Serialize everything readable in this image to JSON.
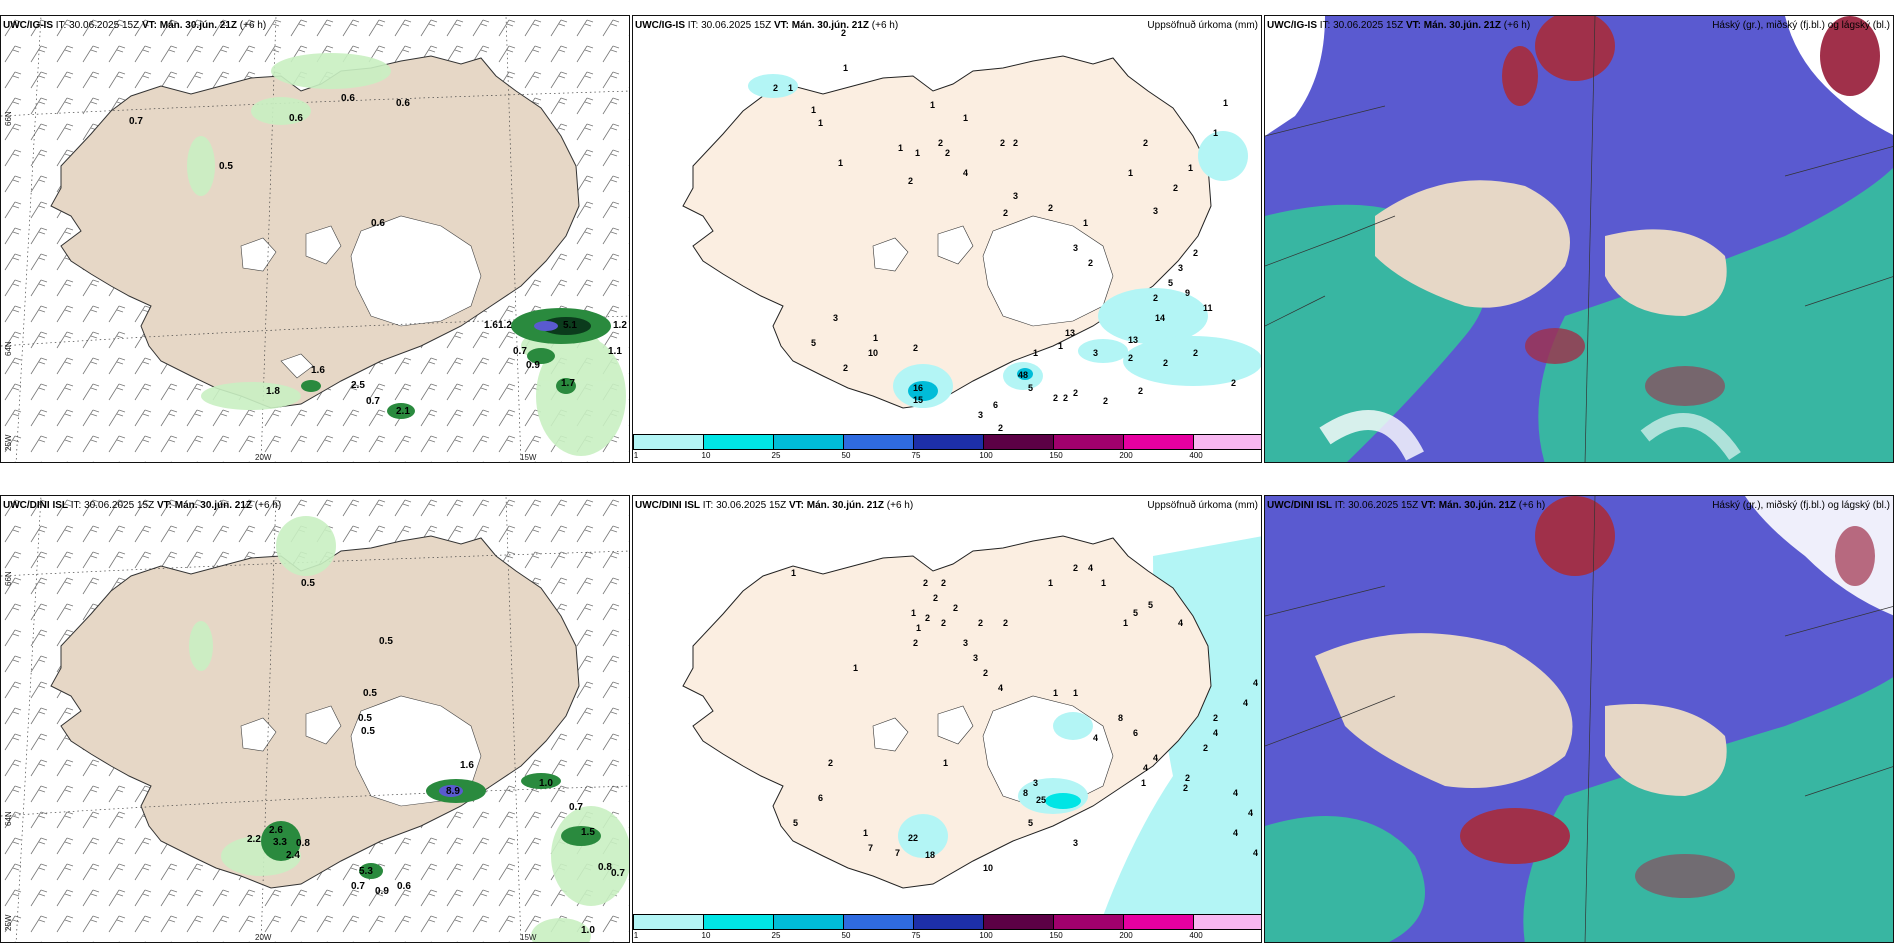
{
  "panels": {
    "top_left": {
      "model": "UWC/IG-IS",
      "it": "IT: 30.06.2025 15Z",
      "vt_label": "VT:",
      "vt": "Mán. 30.jún. 21Z",
      "lead": "(+6 h)",
      "right": ""
    },
    "top_mid": {
      "model": "UWC/IG-IS",
      "it": "IT: 30.06.2025 15Z",
      "vt_label": "VT:",
      "vt": "Mán. 30.jún. 21Z",
      "lead": "(+6 h)",
      "right": "Uppsöfnuð úrkoma (mm)"
    },
    "top_right": {
      "model": "UWC/IG-IS",
      "it": "IT: 30.06.2025 15Z",
      "vt_label": "VT:",
      "vt": "Mán. 30.jún. 21Z",
      "lead": "(+6 h)",
      "right": "Háský (gr.), miðský (fj.bl.) og lágský (bl.)"
    },
    "bot_left": {
      "model": "UWC/DINI ISL",
      "it": "IT: 30.06.2025 15Z",
      "vt_label": "VT:",
      "vt": "Mán. 30.jún. 21Z",
      "lead": "(+6 h)",
      "right": ""
    },
    "bot_mid": {
      "model": "UWC/DINI ISL",
      "it": "IT: 30.06.2025 15Z",
      "vt_label": "VT:",
      "vt": "Mán. 30.jún. 21Z",
      "lead": "(+6 h)",
      "right": "Uppsöfnuð úrkoma (mm)"
    },
    "bot_right": {
      "model": "UWC/DINI ISL",
      "it": "IT: 30.06.2025 15Z",
      "vt_label": "VT:",
      "vt": "Mán. 30.jún. 21Z",
      "lead": "(+6 h)",
      "right": "Háský (gr.), miðský (fj.bl.) og lágský (bl.)"
    }
  },
  "axes": {
    "lat_66": "66N",
    "lat_64": "64N",
    "lon_25": "25W",
    "lon_20": "20W",
    "lon_15": "15W"
  },
  "colorbar": {
    "ticks": [
      "1",
      "10",
      "25",
      "50",
      "75",
      "100",
      "150",
      "200",
      "400"
    ],
    "colors": [
      "#b3f5f5",
      "#00e5e5",
      "#00bcd8",
      "#2f6be0",
      "#1d2fa8",
      "#5c0045",
      "#a0006d",
      "#e600a0",
      "#f7b7f0"
    ]
  },
  "colors": {
    "land": "#e6d7c6",
    "land_pale": "#fbeee1",
    "wind": "#555555",
    "green_light": "#c9f0c2",
    "green_dark": "#1a6a2e",
    "cloud_blue": "#5a5ad0",
    "cloud_red": "#a0304a",
    "cloud_green": "#33c79a"
  },
  "labels": {
    "top_left": [
      "0.7",
      "0.6",
      "0.6",
      "0.6",
      "0.5",
      "0.6",
      "1.6",
      "1.2",
      "0.7",
      "0.9",
      "1.1",
      "1.7",
      "2.5",
      "0.7",
      "1.8",
      "1.6",
      "2.1",
      "5.1",
      "1.2"
    ],
    "top_mid": [
      "2",
      "1",
      "2",
      "1",
      "1",
      "1",
      "1",
      "2",
      "1",
      "1",
      "1",
      "2",
      "2",
      "2",
      "1",
      "4",
      "2",
      "3",
      "2",
      "2",
      "1",
      "1",
      "2",
      "3",
      "2",
      "1",
      "1",
      "3",
      "2",
      "2",
      "1",
      "3",
      "5",
      "2",
      "13",
      "3",
      "2",
      "9",
      "11",
      "2",
      "3",
      "10",
      "2",
      "5",
      "1",
      "2",
      "16",
      "15",
      "3",
      "6",
      "2",
      "2",
      "2",
      "2",
      "1",
      "48",
      "5",
      "2",
      "1",
      "13",
      "2",
      "2",
      "14",
      "2"
    ],
    "bot_left": [
      "0.5",
      "0.5",
      "0.5",
      "0.5",
      "0.5",
      "1.0",
      "0.7",
      "2.2",
      "2.6",
      "3.3",
      "0.8",
      "2.4",
      "5.3",
      "0.7",
      "0.9",
      "0.6",
      "1.5",
      "8.9",
      "1.6",
      "0.8",
      "0.7",
      "1.0"
    ],
    "bot_mid": [
      "1",
      "2",
      "2",
      "2",
      "1",
      "2",
      "1",
      "2",
      "2",
      "2",
      "3",
      "2",
      "2",
      "3",
      "2",
      "4",
      "1",
      "1",
      "1",
      "1",
      "2",
      "4",
      "1",
      "1",
      "5",
      "4",
      "5",
      "4",
      "8",
      "6",
      "4",
      "4",
      "1",
      "2",
      "2",
      "3",
      "22",
      "7",
      "18",
      "10",
      "1",
      "25",
      "4",
      "4",
      "5",
      "2",
      "2",
      "4",
      "4",
      "4",
      "6",
      "7",
      "2",
      "1",
      "5",
      "8",
      "3",
      "4",
      "4"
    ]
  }
}
